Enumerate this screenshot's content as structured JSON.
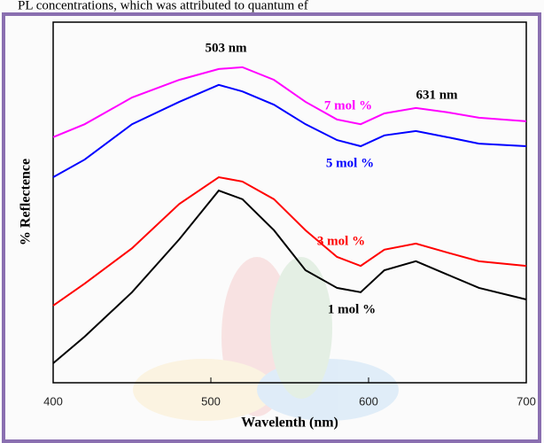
{
  "header_text": "PL concentrations, which was attributed to quantum ef",
  "chart_data": {
    "type": "line",
    "x_label": "Wavelenth (nm)",
    "y_label": "% Reflectence",
    "x": [
      400,
      420,
      450,
      480,
      505,
      520,
      540,
      560,
      580,
      595,
      610,
      630,
      650,
      670,
      700
    ],
    "series": [
      {
        "name": "7 mol %",
        "color": "#ff00ff",
        "values": [
          68.1,
          71.7,
          79.1,
          84.0,
          87.0,
          87.5,
          84.0,
          77.9,
          73.0,
          71.7,
          74.7,
          76.2,
          75.0,
          73.5,
          72.5
        ]
      },
      {
        "name": "5 mol %",
        "color": "#0000ff",
        "values": [
          57.0,
          61.9,
          71.7,
          77.9,
          82.6,
          80.8,
          77.1,
          71.7,
          67.3,
          65.6,
          68.6,
          69.8,
          68.1,
          66.3,
          65.6
        ]
      },
      {
        "name": "3 mol %",
        "color": "#ff0000",
        "values": [
          21.4,
          27.5,
          37.3,
          49.6,
          57.0,
          55.8,
          50.9,
          42.3,
          34.9,
          32.4,
          36.9,
          38.6,
          36.1,
          33.7,
          32.4
        ]
      },
      {
        "name": "1 mol %",
        "color": "#000000",
        "values": [
          5.4,
          12.8,
          25.1,
          39.8,
          53.3,
          50.9,
          42.3,
          31.2,
          26.3,
          25.1,
          31.2,
          33.7,
          30.0,
          26.3,
          23.1
        ]
      }
    ],
    "annotations": [
      "503 nm",
      "631 nm"
    ],
    "xlim": [
      400,
      700
    ],
    "xticks": [
      400,
      500,
      600,
      700
    ],
    "ylim": [
      0,
      100
    ]
  }
}
